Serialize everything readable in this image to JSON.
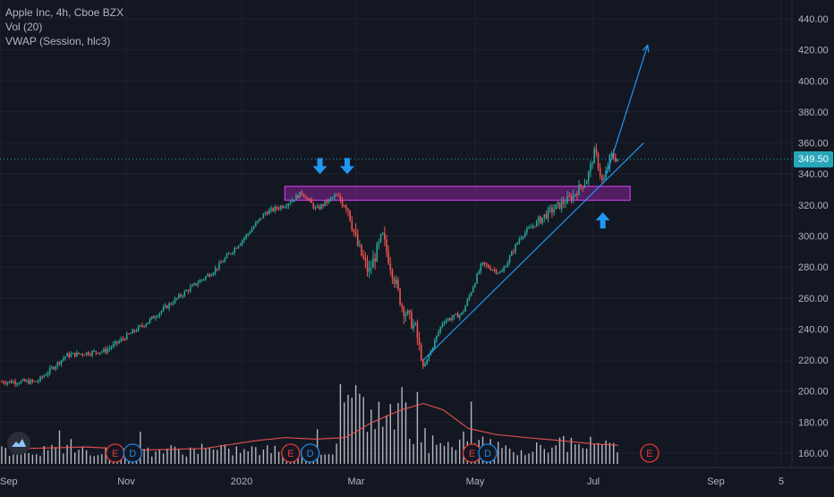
{
  "legend": {
    "symbol": "Apple Inc, 4h, Cboe BZX",
    "volume": "Vol (20)",
    "vwap": "VWAP (Session, hlc3)"
  },
  "current_price_label": "349.50",
  "colors": {
    "background": "#131722",
    "up": "#26a69a",
    "down": "#ef5350",
    "annotation": "#2196f3",
    "zone_fill": "#9c27b0",
    "zone_border": "#e040fb",
    "volume_bar": "#d1d4dc",
    "volume_ma": "#ef5350",
    "price_line": "#26a6b7",
    "event_red": "#e53935",
    "event_blue": "#1e88e5",
    "axis_text": "#b2b5be",
    "grid": "#1e222d"
  },
  "chart_data": {
    "type": "candlestick",
    "title": "Apple Inc, 4h, Cboe BZX",
    "y_axis": {
      "min": 150,
      "max": 450,
      "ticks": [
        160,
        180,
        200,
        220,
        240,
        260,
        280,
        300,
        320,
        340,
        360,
        380,
        400,
        420,
        440
      ],
      "tick_labels": [
        "160.00",
        "180.00",
        "200.00",
        "220.00",
        "240.00",
        "260.00",
        "280.00",
        "300.00",
        "320.00",
        "340.00",
        "360.00",
        "380.00",
        "400.00",
        "420.00",
        "440.00"
      ]
    },
    "x_axis": {
      "labels": [
        "Sep",
        "Nov",
        "2020",
        "Mar",
        "May",
        "Jul",
        "Sep",
        "5"
      ]
    },
    "current_price": 349.5,
    "price_path": [
      {
        "date": "2019-09-20",
        "price": 206
      },
      {
        "date": "2019-10-05",
        "price": 223
      },
      {
        "date": "2019-10-25",
        "price": 226
      },
      {
        "date": "2019-11-15",
        "price": 244
      },
      {
        "date": "2019-12-05",
        "price": 264
      },
      {
        "date": "2019-12-20",
        "price": 278
      },
      {
        "date": "2020-01-05",
        "price": 300
      },
      {
        "date": "2020-01-15",
        "price": 315
      },
      {
        "date": "2020-01-25",
        "price": 320
      },
      {
        "date": "2020-02-03",
        "price": 328
      },
      {
        "date": "2020-02-10",
        "price": 317
      },
      {
        "date": "2020-02-20",
        "price": 326
      },
      {
        "date": "2020-02-26",
        "price": 320
      },
      {
        "date": "2020-03-02",
        "price": 295
      },
      {
        "date": "2020-03-08",
        "price": 276
      },
      {
        "date": "2020-03-15",
        "price": 300
      },
      {
        "date": "2020-03-25",
        "price": 255
      },
      {
        "date": "2020-04-01",
        "price": 240
      },
      {
        "date": "2020-04-05",
        "price": 214
      },
      {
        "date": "2020-04-15",
        "price": 245
      },
      {
        "date": "2020-04-25",
        "price": 250
      },
      {
        "date": "2020-05-05",
        "price": 282
      },
      {
        "date": "2020-05-15",
        "price": 276
      },
      {
        "date": "2020-05-25",
        "price": 300
      },
      {
        "date": "2020-06-08",
        "price": 315
      },
      {
        "date": "2020-06-20",
        "price": 325
      },
      {
        "date": "2020-06-28",
        "price": 337
      },
      {
        "date": "2020-07-02",
        "price": 355
      },
      {
        "date": "2020-07-06",
        "price": 333
      },
      {
        "date": "2020-07-10",
        "price": 352
      },
      {
        "date": "2020-07-14",
        "price": 349.5
      }
    ],
    "volume_ma_path": [
      {
        "date": "2019-09-15",
        "value": 163
      },
      {
        "date": "2019-10-15",
        "value": 164
      },
      {
        "date": "2019-11-15",
        "value": 162
      },
      {
        "date": "2019-12-15",
        "value": 163
      },
      {
        "date": "2020-01-10",
        "value": 168
      },
      {
        "date": "2020-01-25",
        "value": 170
      },
      {
        "date": "2020-02-10",
        "value": 169
      },
      {
        "date": "2020-02-25",
        "value": 170
      },
      {
        "date": "2020-03-10",
        "value": 180
      },
      {
        "date": "2020-03-25",
        "value": 188
      },
      {
        "date": "2020-04-05",
        "value": 192
      },
      {
        "date": "2020-04-15",
        "value": 188
      },
      {
        "date": "2020-04-28",
        "value": 176
      },
      {
        "date": "2020-05-12",
        "value": 172
      },
      {
        "date": "2020-05-28",
        "value": 170
      },
      {
        "date": "2020-06-15",
        "value": 168
      },
      {
        "date": "2020-07-01",
        "value": 166
      },
      {
        "date": "2020-07-14",
        "value": 165
      }
    ],
    "resistance_zone": {
      "date_start": "2020-01-25",
      "date_end": "2020-07-20",
      "price_low": 323,
      "price_high": 332
    },
    "trendline": {
      "date_start": "2020-04-05",
      "price_start": 220,
      "date_end": "2020-07-27",
      "price_end": 360
    },
    "projection_arrow": {
      "date_start": "2020-07-08",
      "price_start": 340,
      "date_end": "2020-07-29",
      "price_end": 423
    },
    "markers": [
      {
        "type": "arrow-down",
        "date": "2020-02-12",
        "price": 345
      },
      {
        "type": "arrow-down",
        "date": "2020-02-26",
        "price": 345
      },
      {
        "type": "arrow-up",
        "date": "2020-07-06",
        "price": 310
      }
    ],
    "events": [
      {
        "label": "E",
        "kind": "earnings",
        "date": "2019-10-30"
      },
      {
        "label": "D",
        "kind": "dividend",
        "date": "2019-11-08"
      },
      {
        "label": "E",
        "kind": "earnings",
        "date": "2020-01-28"
      },
      {
        "label": "D",
        "kind": "dividend",
        "date": "2020-02-07"
      },
      {
        "label": "E",
        "kind": "earnings",
        "date": "2020-04-30"
      },
      {
        "label": "D",
        "kind": "dividend",
        "date": "2020-05-08"
      },
      {
        "label": "E",
        "kind": "earnings",
        "date": "2020-07-30"
      }
    ],
    "volume_unit_note": ""
  }
}
